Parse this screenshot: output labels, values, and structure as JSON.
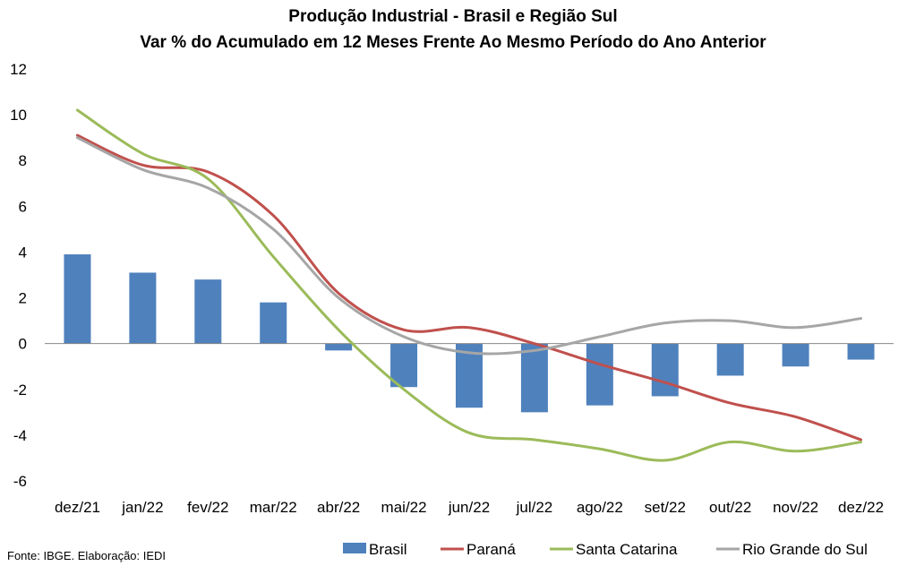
{
  "chart_data": {
    "type": "bar+line",
    "title": "Produção Industrial - Brasil e Região Sul",
    "subtitle": "Var % do Acumulado em 12 Meses Frente Ao Mesmo Período do Ano Anterior",
    "categories": [
      "dez/21",
      "jan/22",
      "fev/22",
      "mar/22",
      "abr/22",
      "mai/22",
      "jun/22",
      "jul/22",
      "ago/22",
      "set/22",
      "out/22",
      "nov/22",
      "dez/22"
    ],
    "ylim": [
      -6,
      12
    ],
    "yticks": [
      "12",
      "10",
      "8",
      "6",
      "4",
      "2",
      "0",
      "-2",
      "-4",
      "-6"
    ],
    "ytick_values": [
      12,
      10,
      8,
      6,
      4,
      2,
      0,
      -2,
      -4,
      -6
    ],
    "grid": false,
    "legend_position": "bottom",
    "series": [
      {
        "name": "Brasil",
        "kind": "bar",
        "color": "#4f81bd",
        "values": [
          3.9,
          3.1,
          2.8,
          1.8,
          -0.3,
          -1.9,
          -2.8,
          -3.0,
          -2.7,
          -2.3,
          -1.4,
          -1.0,
          -0.7
        ]
      },
      {
        "name": "Paraná",
        "kind": "line",
        "color": "#c0504d",
        "values": [
          9.1,
          7.8,
          7.5,
          5.6,
          2.2,
          0.6,
          0.7,
          0.0,
          -0.9,
          -1.7,
          -2.6,
          -3.2,
          -4.2
        ]
      },
      {
        "name": "Santa Catarina",
        "kind": "line",
        "color": "#9bbb59",
        "values": [
          10.2,
          8.3,
          7.2,
          3.8,
          0.6,
          -2.0,
          -3.9,
          -4.2,
          -4.6,
          -5.1,
          -4.3,
          -4.7,
          -4.3
        ]
      },
      {
        "name": "Rio Grande do Sul",
        "kind": "line",
        "color": "#a6a6a6",
        "values": [
          9.0,
          7.6,
          6.8,
          5.0,
          2.0,
          0.3,
          -0.4,
          -0.3,
          0.3,
          0.9,
          1.0,
          0.7,
          1.1
        ]
      }
    ],
    "source": "Fonte: IBGE. Elaboração: IEDI"
  }
}
